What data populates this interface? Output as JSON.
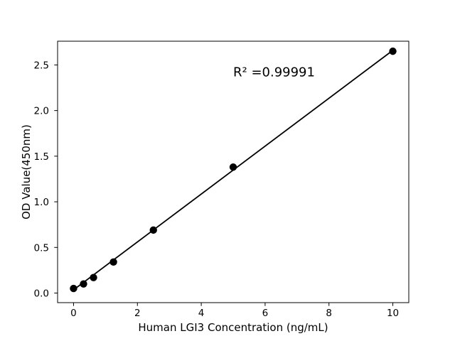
{
  "figure": {
    "background": "#ffffff"
  },
  "chart_data": {
    "type": "scatter",
    "title": "",
    "xlabel": "Human LGI3 Concentration (ng/mL)",
    "ylabel": "OD Value(450nm)",
    "annotation": {
      "text": "R² =0.99991",
      "x": 5.0,
      "y": 2.43
    },
    "x": [
      0,
      0.3125,
      0.625,
      1.25,
      2.5,
      5,
      10
    ],
    "y": [
      0.05,
      0.1,
      0.17,
      0.34,
      0.69,
      1.38,
      2.65
    ],
    "trendline": {
      "x": [
        0,
        10
      ],
      "y": [
        0.035,
        2.66
      ]
    },
    "xlim": [
      -0.5,
      10.5
    ],
    "ylim": [
      -0.105,
      2.76
    ],
    "xticks": {
      "values": [
        0,
        2,
        4,
        6,
        8,
        10
      ],
      "labels": [
        "0",
        "2",
        "4",
        "6",
        "8",
        "10"
      ]
    },
    "yticks": {
      "values": [
        0,
        0.5,
        1.0,
        1.5,
        2.0,
        2.5
      ],
      "labels": [
        "0.0",
        "0.5",
        "1.0",
        "1.5",
        "2.0",
        "2.5"
      ]
    },
    "grid": false,
    "legend": null,
    "colors": {
      "marker": "#000000",
      "line": "#000000",
      "spine": "#000000",
      "text": "#000000",
      "background": "#ffffff"
    }
  }
}
